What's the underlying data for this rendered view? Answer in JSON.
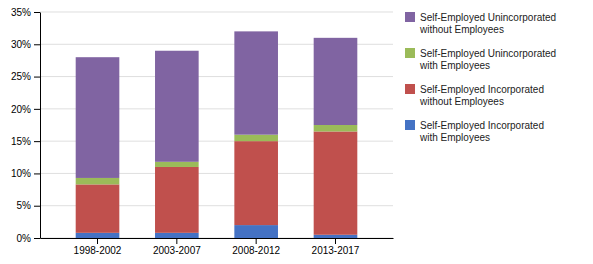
{
  "chart_data": {
    "type": "bar",
    "stacked": true,
    "categories": [
      "1998-2002",
      "2003-2007",
      "2008-2012",
      "2013-2017"
    ],
    "series": [
      {
        "name": "Self-Employed Incorporated\nwith Employees",
        "color": "#4472C4",
        "values": [
          0.8,
          0.8,
          2.0,
          0.5
        ]
      },
      {
        "name": "Self-Employed Incorporated\nwithout Employees",
        "color": "#C0504D",
        "values": [
          7.5,
          10.2,
          13.0,
          16.0
        ]
      },
      {
        "name": "Self-Employed Unincorporated\nwith Employees",
        "color": "#9BBB59",
        "values": [
          1.0,
          0.8,
          1.0,
          1.0
        ]
      },
      {
        "name": "Self-Employed Unincorporated\nwithout Employees",
        "color": "#8064A2",
        "values": [
          18.7,
          17.2,
          16.0,
          13.5
        ]
      }
    ],
    "ylim": [
      0,
      35
    ],
    "yticks": [
      {
        "value": 0,
        "label": "0%"
      },
      {
        "value": 5,
        "label": "5%"
      },
      {
        "value": 10,
        "label": "10%"
      },
      {
        "value": 15,
        "label": "15%"
      },
      {
        "value": 20,
        "label": "20%"
      },
      {
        "value": 25,
        "label": "25%"
      },
      {
        "value": 30,
        "label": "30%"
      },
      {
        "value": 35,
        "label": "35%"
      }
    ],
    "grid": true,
    "legend": "right"
  }
}
